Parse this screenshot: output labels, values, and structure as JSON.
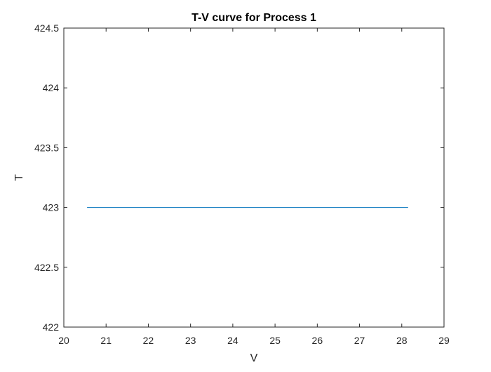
{
  "chart_data": {
    "type": "line",
    "title": "T-V curve for Process 1",
    "xlabel": "V",
    "ylabel": "T",
    "xlim": [
      20,
      29
    ],
    "ylim": [
      422,
      424.5
    ],
    "xticks": [
      "20",
      "21",
      "22",
      "23",
      "24",
      "25",
      "26",
      "27",
      "28",
      "29"
    ],
    "yticks": [
      "422",
      "422.5",
      "423",
      "423.5",
      "424",
      "424.5"
    ],
    "grid": false,
    "series": [
      {
        "color": "#0072bd",
        "x": [
          20.55,
          28.15
        ],
        "y": [
          423,
          423
        ]
      }
    ]
  }
}
